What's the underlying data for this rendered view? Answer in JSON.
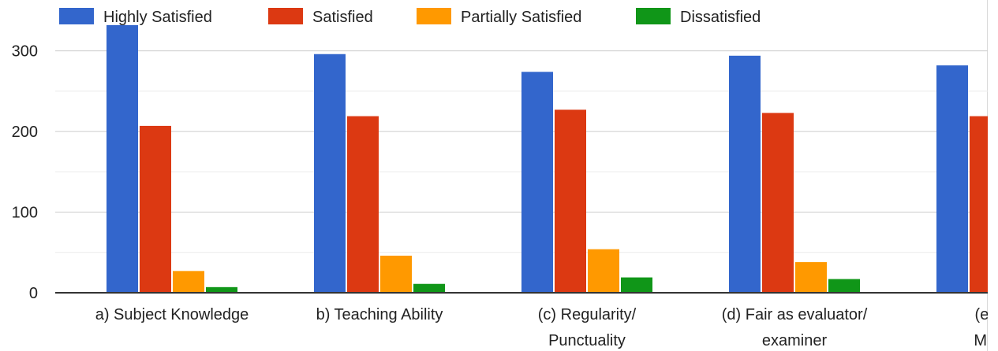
{
  "chart_data": {
    "type": "bar",
    "categories": [
      [
        "a) Subject Knowledge"
      ],
      [
        "b) Teaching Ability"
      ],
      [
        "(c) Regularity/",
        "Punctuality"
      ],
      [
        "(d) Fair as evaluator/",
        "examiner"
      ],
      [
        "(e) Men",
        "Model a"
      ]
    ],
    "series": [
      {
        "name": "Highly Satisfied",
        "color": "#3366cc",
        "values": [
          332,
          296,
          274,
          294,
          282
        ]
      },
      {
        "name": "Satisfied",
        "color": "#dc3912",
        "values": [
          207,
          219,
          227,
          223,
          219
        ]
      },
      {
        "name": "Partially Satisfied",
        "color": "#ff9900",
        "values": [
          27,
          46,
          54,
          38,
          null
        ]
      },
      {
        "name": "Dissatisfied",
        "color": "#109618",
        "values": [
          7,
          11,
          19,
          17,
          null
        ]
      }
    ],
    "ylim": [
      0,
      330
    ],
    "yticks": [
      0,
      100,
      200,
      300
    ],
    "grid": true,
    "legend_position": "top",
    "title": "",
    "xlabel": "",
    "ylabel": ""
  }
}
